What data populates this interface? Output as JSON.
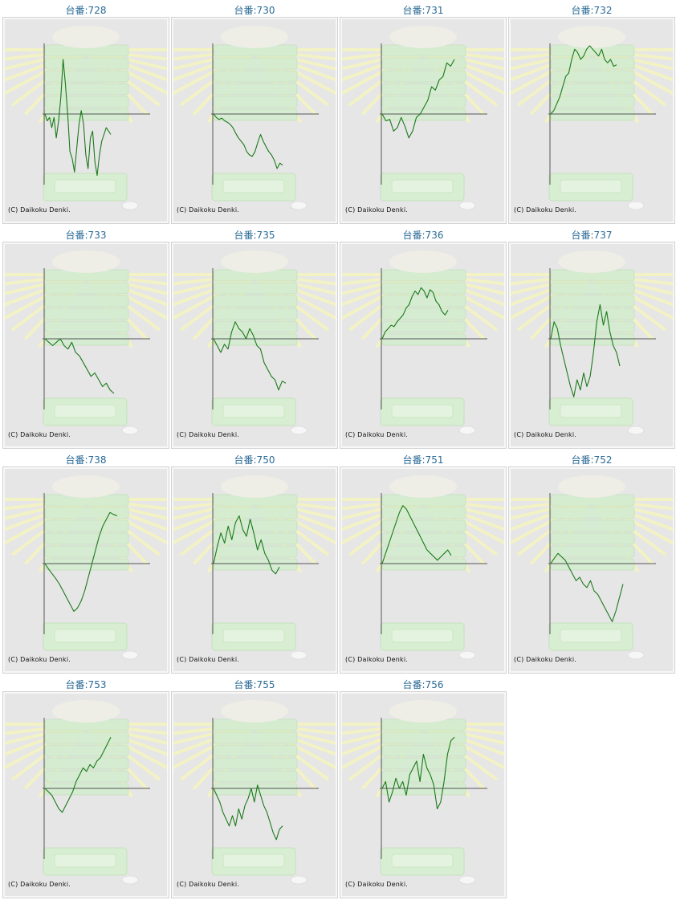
{
  "prefix": "台番:",
  "copyright": "(C) Daikoku Denki.",
  "colors": {
    "line": "#1a7a1a",
    "axis": "#555555",
    "title": "#2a6a96",
    "panel_bg": "#e6e6e6"
  },
  "chart_data": [
    {
      "type": "line",
      "title": "728",
      "y": [
        0,
        -10,
        -5,
        -20,
        -5,
        -35,
        -10,
        25,
        80,
        45,
        0,
        -55,
        -65,
        -85,
        -50,
        -15,
        5,
        -15,
        -60,
        -80,
        -35,
        -25,
        -70,
        -90,
        -60,
        -40,
        -30,
        -20,
        -25,
        -30
      ]
    },
    {
      "type": "line",
      "title": "730",
      "y": [
        0,
        -5,
        -8,
        -6,
        -10,
        -12,
        -15,
        -20,
        -28,
        -35,
        -40,
        -45,
        -55,
        -60,
        -62,
        -55,
        -42,
        -30,
        -40,
        -48,
        -55,
        -60,
        -68,
        -80,
        -72,
        -75
      ]
    },
    {
      "type": "line",
      "title": "731",
      "y": [
        0,
        -10,
        -8,
        -25,
        -20,
        -5,
        -18,
        -35,
        -25,
        -5,
        0,
        10,
        20,
        40,
        35,
        50,
        55,
        75,
        70,
        80
      ]
    },
    {
      "type": "line",
      "title": "732",
      "y": [
        0,
        5,
        15,
        25,
        40,
        55,
        60,
        80,
        95,
        90,
        80,
        85,
        95,
        100,
        95,
        90,
        85,
        95,
        80,
        75,
        80,
        70,
        72
      ]
    },
    {
      "type": "line",
      "title": "733",
      "y": [
        0,
        -5,
        -10,
        -5,
        0,
        -10,
        -15,
        -5,
        -20,
        -25,
        -35,
        -45,
        -55,
        -50,
        -60,
        -70,
        -65,
        -75,
        -80
      ]
    },
    {
      "type": "line",
      "title": "735",
      "y": [
        0,
        -10,
        -20,
        -8,
        -15,
        10,
        25,
        15,
        10,
        0,
        15,
        5,
        -10,
        -15,
        -35,
        -45,
        -55,
        -60,
        -75,
        -62,
        -65
      ]
    },
    {
      "type": "line",
      "title": "736",
      "y": [
        0,
        10,
        15,
        20,
        18,
        25,
        30,
        35,
        45,
        50,
        62,
        70,
        65,
        75,
        70,
        60,
        72,
        68,
        55,
        50,
        40,
        35,
        42
      ]
    },
    {
      "type": "line",
      "title": "737",
      "y": [
        0,
        25,
        15,
        -10,
        -30,
        -50,
        -70,
        -85,
        -60,
        -75,
        -50,
        -70,
        -55,
        -20,
        25,
        50,
        20,
        40,
        10,
        -10,
        -20,
        -40
      ]
    },
    {
      "type": "line",
      "title": "738",
      "y": [
        0,
        -8,
        -15,
        -22,
        -30,
        -40,
        -50,
        -60,
        -70,
        -65,
        -55,
        -40,
        -20,
        0,
        20,
        40,
        55,
        65,
        75,
        72,
        70
      ]
    },
    {
      "type": "line",
      "title": "750",
      "y": [
        0,
        25,
        45,
        30,
        55,
        35,
        60,
        70,
        50,
        40,
        65,
        45,
        20,
        35,
        15,
        5,
        -10,
        -15,
        -5
      ]
    },
    {
      "type": "line",
      "title": "751",
      "y": [
        0,
        15,
        30,
        45,
        60,
        75,
        85,
        80,
        70,
        60,
        50,
        40,
        30,
        20,
        15,
        10,
        5,
        10,
        15,
        20,
        12
      ]
    },
    {
      "type": "line",
      "title": "752",
      "y": [
        0,
        8,
        15,
        10,
        5,
        -5,
        -15,
        -25,
        -20,
        -30,
        -35,
        -25,
        -40,
        -45,
        -55,
        -65,
        -75,
        -85,
        -70,
        -50,
        -30
      ]
    },
    {
      "type": "line",
      "title": "753",
      "y": [
        0,
        -5,
        -10,
        -20,
        -30,
        -35,
        -25,
        -15,
        -5,
        10,
        20,
        30,
        25,
        35,
        30,
        40,
        45,
        55,
        65,
        75
      ]
    },
    {
      "type": "line",
      "title": "755",
      "y": [
        0,
        -10,
        -20,
        -35,
        -45,
        -55,
        -40,
        -55,
        -30,
        -45,
        -25,
        -15,
        0,
        -20,
        5,
        -10,
        -25,
        -35,
        -50,
        -65,
        -75,
        -60,
        -55
      ]
    },
    {
      "type": "line",
      "title": "756",
      "y": [
        0,
        10,
        -20,
        -5,
        15,
        0,
        10,
        -10,
        20,
        30,
        40,
        10,
        50,
        30,
        20,
        5,
        -30,
        -20,
        10,
        50,
        70,
        75
      ]
    }
  ]
}
